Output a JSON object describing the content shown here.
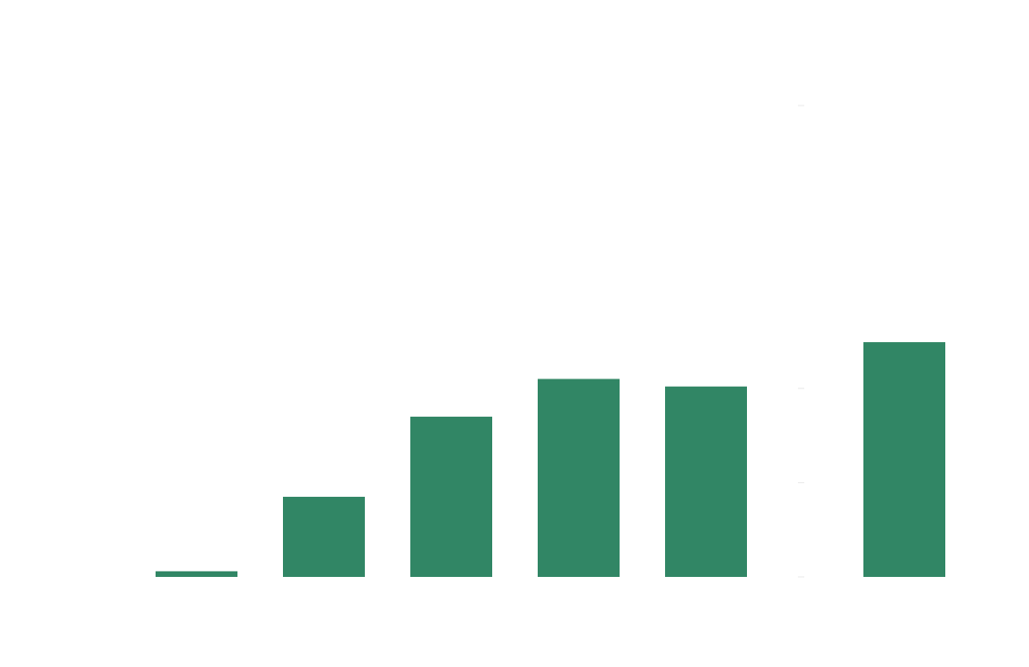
{
  "chart_data": {
    "type": "bar",
    "categories": [
      null,
      null,
      null,
      null,
      null,
      null
    ],
    "values": [
      0.06,
      0.85,
      1.7,
      2.1,
      2.02,
      2.49
    ],
    "color": "#318665",
    "ylim": [
      0,
      5
    ],
    "yticks": [
      0,
      1,
      2,
      5
    ]
  }
}
